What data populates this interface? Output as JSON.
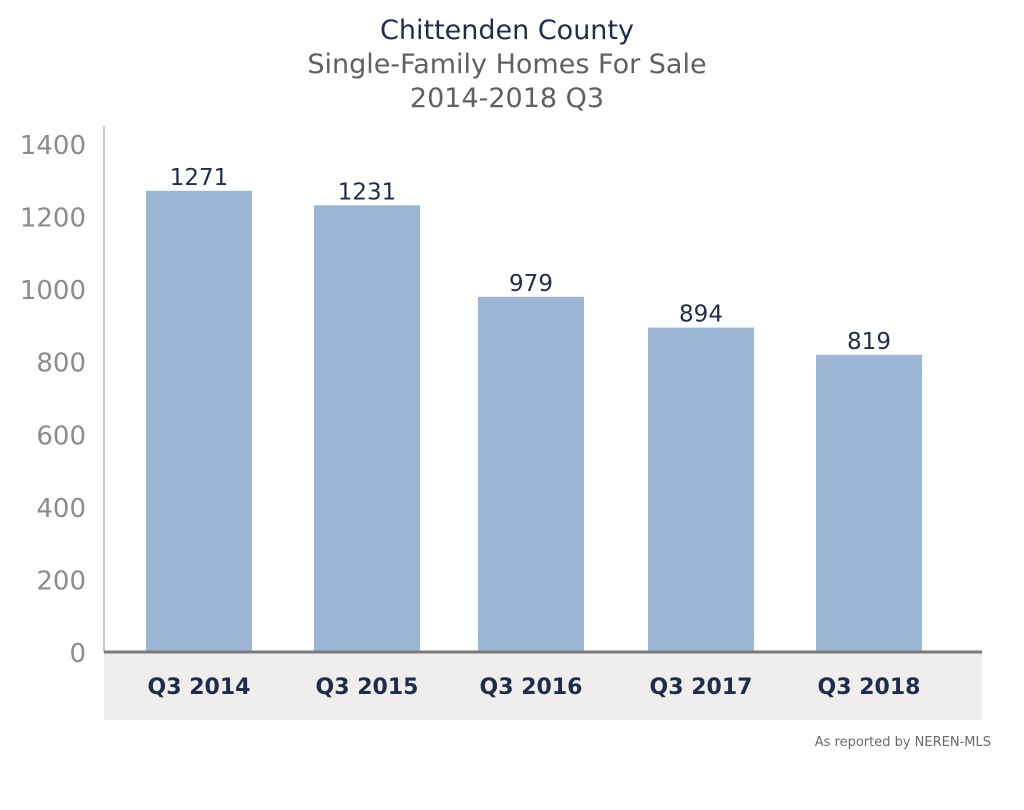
{
  "chart_data": {
    "type": "bar",
    "title": "Chittenden County",
    "subtitle": [
      "Single-Family Homes For Sale",
      "2014-2018 Q3"
    ],
    "categories": [
      "Q3 2014",
      "Q3 2015",
      "Q3 2016",
      "Q3 2017",
      "Q3 2018"
    ],
    "values": [
      1271,
      1231,
      979,
      894,
      819
    ],
    "data_labels": [
      "1271",
      "1231",
      "979",
      "894",
      "819"
    ],
    "xlabel": "",
    "ylabel": "",
    "ylim": [
      0,
      1400
    ],
    "yticks": [
      0,
      200,
      400,
      600,
      800,
      1000,
      1200,
      1400
    ],
    "grid": false,
    "legend": "none",
    "colors": {
      "bar": "#9db5d5",
      "title": "#1f2d4d",
      "subtitle": "#606060",
      "axis_tick_labels": "#8c8c8c",
      "category_labels": "#1f2d4d",
      "data_labels": "#1f2d4d",
      "axis_line": "#7a7a7a",
      "category_band": "#efeeec"
    }
  },
  "footer": {
    "source": "As reported by NEREN-MLS"
  }
}
